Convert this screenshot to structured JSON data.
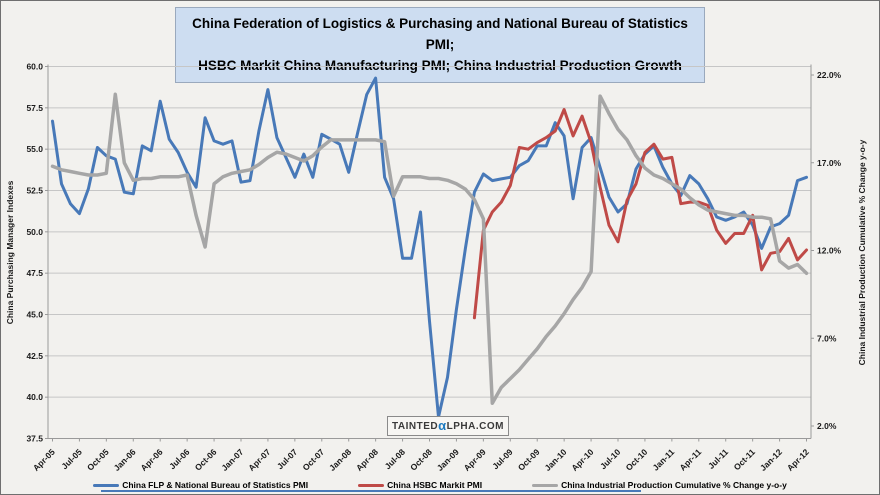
{
  "title": {
    "line1": "China Federation of Logistics & Purchasing and National Bureau of Statistics PMI;",
    "line2": "HSBC Markit China Manufacturing PMI; China Industrial Production Growth"
  },
  "watermark": {
    "text_before": "TAINTED",
    "alpha_glyph": "α",
    "text_after": "LPHA.COM"
  },
  "colors": {
    "nbs_pmi": "#4879b8",
    "hsbc_pmi": "#bf4a47",
    "industrial_production": "#a6a6a6",
    "title_bg": "#cdddf1",
    "grid": "#c6c6c6",
    "axis": "#9a9a9a",
    "tick_text": "#1a1a1a",
    "watermark_alpha": "#1f7bc0",
    "bottom_rule": "#4879b8"
  },
  "axes": {
    "left_title": "China Purchasing Manager Indexes",
    "right_title": "China Industrial Production Cumulative % Change y-o-y",
    "left_ticks": [
      60.0,
      57.5,
      55.0,
      52.5,
      50.0,
      47.5,
      45.0,
      42.5,
      40.0,
      37.5
    ],
    "right_ticks": [
      22.0,
      17.0,
      12.0,
      7.0,
      2.0
    ],
    "x_tick_labels": [
      "Apr-05",
      "Jul-05",
      "Oct-05",
      "Jan-06",
      "Apr-06",
      "Jul-06",
      "Oct-06",
      "Jan-07",
      "Apr-07",
      "Jul-07",
      "Oct-07",
      "Jan-08",
      "Apr-08",
      "Jul-08",
      "Oct-08",
      "Jan-09",
      "Apr-09",
      "Jul-09",
      "Oct-09",
      "Jan-10",
      "Apr-10",
      "Jul-10",
      "Oct-10",
      "Jan-11",
      "Apr-11",
      "Jul-11",
      "Oct-11",
      "Jan-12",
      "Apr-12"
    ]
  },
  "legend": {
    "items": [
      {
        "label": "China FLP & National Bureau of Statistics PMI",
        "series": "nbs_pmi"
      },
      {
        "label": "China HSBC Markit PMI",
        "series": "hsbc_pmi"
      },
      {
        "label": "China Industrial Production Cumulative % Change y-o-y",
        "series": "industrial_production"
      }
    ]
  },
  "chart_data": {
    "type": "line",
    "x_frequency": "monthly",
    "x_start": "Apr-2005",
    "x_end": "Apr-2012",
    "n_points": 85,
    "ylim_left": [
      37.5,
      60.0
    ],
    "ylim_right": [
      2.0,
      22.0
    ],
    "grid": "horizontal",
    "legend_position": "bottom",
    "series": [
      {
        "name": "China FLP & National Bureau of Statistics PMI",
        "color_key": "nbs_pmi",
        "axis": "left",
        "start_index": 0,
        "values": [
          56.7,
          52.9,
          51.7,
          51.1,
          52.6,
          55.1,
          54.6,
          54.4,
          52.4,
          52.3,
          55.2,
          54.9,
          57.9,
          55.6,
          54.8,
          53.6,
          52.7,
          56.9,
          55.5,
          55.3,
          55.5,
          53.0,
          53.1,
          56.1,
          58.6,
          55.7,
          54.5,
          53.3,
          54.7,
          53.3,
          55.9,
          55.6,
          55.3,
          53.6,
          56.0,
          58.3,
          59.3,
          53.3,
          52.0,
          48.4,
          48.4,
          51.2,
          44.6,
          38.8,
          41.2,
          45.3,
          49.0,
          52.4,
          53.5,
          53.1,
          53.2,
          53.3,
          54.0,
          54.3,
          55.2,
          55.2,
          56.6,
          55.8,
          52.0,
          55.1,
          55.7,
          53.9,
          52.1,
          51.2,
          51.7,
          53.8,
          54.7,
          55.2,
          53.9,
          52.9,
          52.2,
          53.4,
          52.9,
          52.0,
          50.9,
          50.7,
          50.9,
          51.2,
          50.4,
          49.0,
          50.3,
          50.5,
          51.0,
          53.1,
          53.3
        ]
      },
      {
        "name": "China HSBC Markit PMI",
        "color_key": "hsbc_pmi",
        "axis": "left",
        "start_index": 47,
        "values": [
          44.8,
          50.1,
          51.2,
          51.8,
          52.8,
          55.1,
          55.0,
          55.4,
          55.7,
          56.1,
          57.4,
          55.8,
          57.0,
          55.4,
          52.7,
          50.4,
          49.4,
          51.9,
          52.9,
          54.8,
          55.3,
          54.4,
          54.5,
          51.7,
          51.8,
          51.8,
          51.6,
          50.1,
          49.3,
          49.9,
          49.9,
          51.0,
          47.7,
          48.7,
          48.8,
          49.6,
          48.3,
          48.9
        ]
      },
      {
        "name": "China Industrial Production Cumulative % Change y-o-y",
        "color_key": "industrial_production",
        "axis": "right",
        "start_index": 0,
        "values": [
          16.8,
          16.6,
          16.5,
          16.4,
          16.3,
          16.3,
          16.4,
          20.9,
          17.0,
          16.0,
          16.1,
          16.1,
          16.2,
          16.2,
          16.2,
          16.3,
          14.0,
          12.2,
          15.8,
          16.2,
          16.4,
          16.5,
          16.6,
          16.9,
          17.3,
          17.6,
          17.5,
          17.3,
          17.1,
          17.4,
          17.9,
          18.3,
          18.3,
          18.3,
          18.3,
          18.3,
          18.3,
          18.2,
          15.1,
          16.2,
          16.2,
          16.2,
          16.1,
          16.1,
          16.0,
          15.8,
          15.5,
          14.9,
          13.8,
          3.3,
          4.2,
          4.7,
          5.2,
          5.8,
          6.4,
          7.1,
          7.7,
          8.4,
          9.2,
          9.9,
          10.8,
          20.8,
          19.8,
          18.9,
          18.3,
          17.4,
          16.7,
          16.3,
          16.1,
          15.8,
          15.5,
          15.0,
          14.6,
          14.3,
          14.2,
          14.1,
          14.0,
          14.0,
          13.9,
          13.9,
          13.8,
          11.4,
          11.0,
          11.2,
          10.7
        ]
      }
    ]
  }
}
